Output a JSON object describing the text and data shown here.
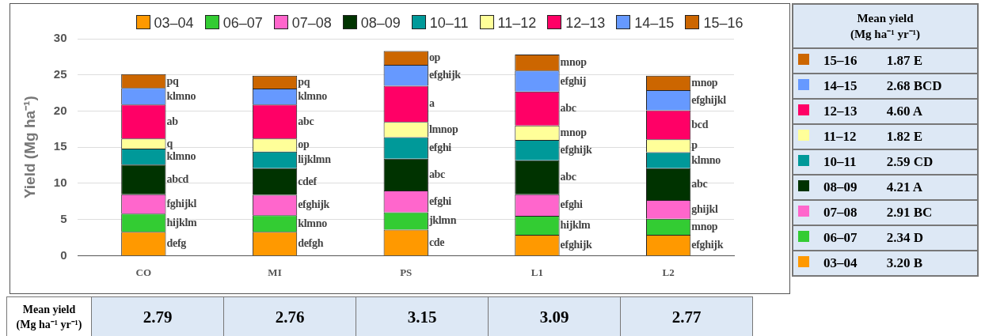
{
  "chart_data": {
    "type": "bar",
    "stacked": true,
    "ylabel": "Yield (Mg ha⁻¹)",
    "categories": [
      "CO",
      "MI",
      "PS",
      "L1",
      "L2"
    ],
    "ylim": [
      0,
      30
    ],
    "yticks": [
      0,
      5,
      10,
      15,
      20,
      25,
      30
    ],
    "grid": "y",
    "legend": "top",
    "series": [
      {
        "name": "03–04",
        "color": "#ff9900",
        "values": [
          3.3,
          3.3,
          3.6,
          2.9,
          2.9
        ]
      },
      {
        "name": "06–07",
        "color": "#33cc33",
        "values": [
          2.5,
          2.3,
          2.4,
          2.6,
          2.2
        ]
      },
      {
        "name": "07–08",
        "color": "#ff66cc",
        "values": [
          2.7,
          2.8,
          3.0,
          3.0,
          2.6
        ]
      },
      {
        "name": "08–09",
        "color": "#003300",
        "values": [
          4.1,
          3.7,
          4.4,
          4.7,
          4.4
        ]
      },
      {
        "name": "10–11",
        "color": "#009999",
        "values": [
          2.2,
          2.3,
          3.0,
          2.8,
          2.2
        ]
      },
      {
        "name": "11–12",
        "color": "#ffff99",
        "values": [
          1.4,
          1.8,
          2.1,
          2.0,
          1.8
        ]
      },
      {
        "name": "12–13",
        "color": "#ff0066",
        "values": [
          4.7,
          4.7,
          5.0,
          4.7,
          4.0
        ]
      },
      {
        "name": "14–15",
        "color": "#6699ff",
        "values": [
          2.3,
          2.2,
          2.9,
          2.9,
          2.8
        ]
      },
      {
        "name": "15–16",
        "color": "#cc6600",
        "values": [
          1.9,
          1.8,
          1.9,
          2.2,
          2.0
        ]
      }
    ],
    "annotations": [
      "defg",
      "hijklm",
      "fghijkl",
      "abcd",
      "klmno",
      "q",
      "ab",
      "klmno",
      "pq",
      "defgh",
      "klmno",
      "efghijk",
      "cdef",
      "lijklmn",
      "op",
      "abc",
      "klmno",
      "pq",
      "cde",
      "jklmn",
      "efghi",
      "abc",
      "efghi",
      "lmnop",
      "a",
      "efghijk",
      "op",
      "efghijk",
      "hijklm",
      "efghi",
      "abc",
      "efghijk",
      "mnop",
      "abc",
      "efghij",
      "mnop",
      "efghijk",
      "mnop",
      "ghijkl",
      "abc",
      "klmno",
      "p",
      "bcd",
      "efghijkl",
      "mnop",
      "Mean yield (Mg ha⁻¹ yr⁻¹)",
      "1.87 E",
      "2.68 BCD",
      "4.60 A",
      "1.82 E",
      "2.59 CD",
      "4.21 A",
      "2.91 BC",
      "2.34 D",
      "3.20 B",
      "Mean yield (Mg ha⁻¹ yr⁻¹)",
      "2.79",
      "2.76",
      "3.15",
      "3.09",
      "2.77"
    ]
  }
}
